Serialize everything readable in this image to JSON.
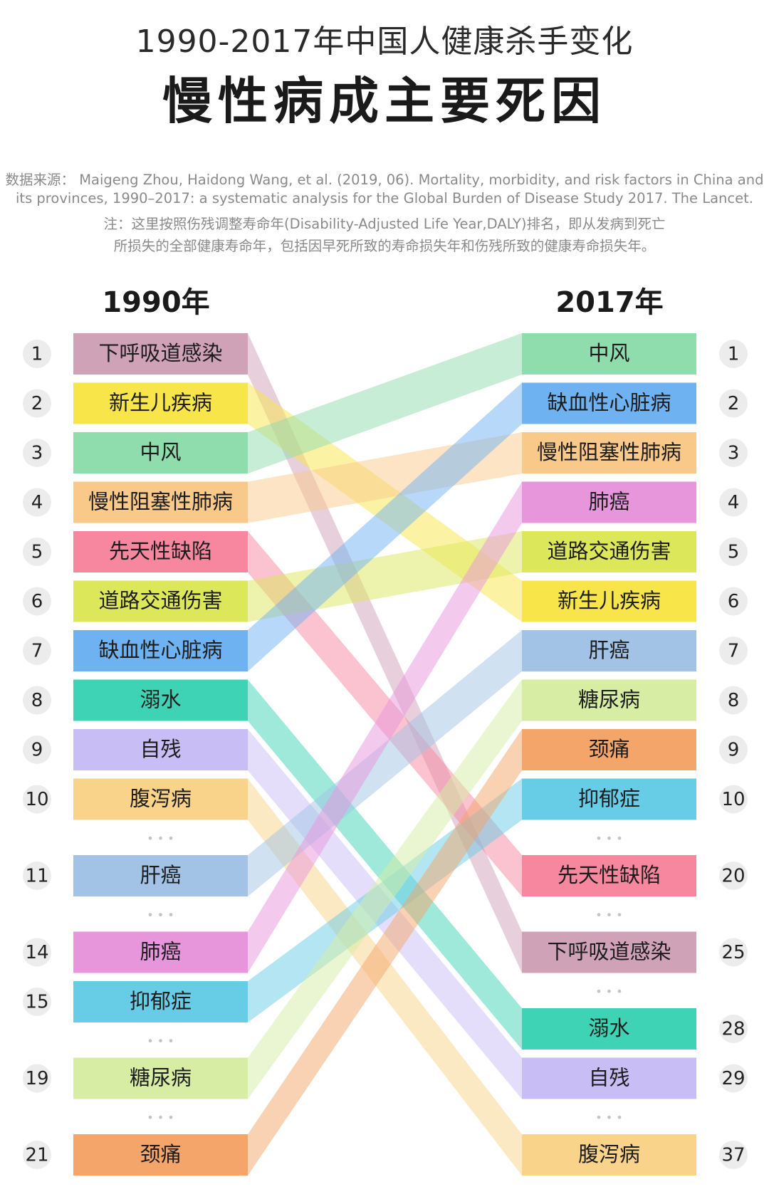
{
  "header": {
    "title_line1": "1990-2017年中国人健康杀手变化",
    "title_line2": "慢性病成主要死因",
    "source_lines": [
      "数据来源： Maigeng Zhou, Haidong Wang, et al. (2019, 06). Mortality, morbidity, and risk factors in China and",
      "its provinces, 1990–2017: a systematic analysis for the Global Burden of Disease Study 2017. The Lancet.",
      "注：这里按照伤残调整寿命年(Disability-Adjusted Life Year,DALY)排名，即从发病到死亡",
      "所损失的全部健康寿命年，包括因早死所致的寿命损失年和伤残所致的健康寿命损失年。"
    ]
  },
  "chart_data": {
    "type": "table",
    "left_header": "1990年",
    "right_header": "2017年",
    "ellipsis": "• • •",
    "left_items": [
      {
        "rank": "1",
        "label": "下呼吸道感染",
        "color": "#cfa2b8",
        "gap_before": false
      },
      {
        "rank": "2",
        "label": "新生儿疾病",
        "color": "#f7e54a",
        "gap_before": false
      },
      {
        "rank": "3",
        "label": "中风",
        "color": "#8fdcad",
        "gap_before": false
      },
      {
        "rank": "4",
        "label": "慢性阻塞性肺病",
        "color": "#f9c98a",
        "gap_before": false
      },
      {
        "rank": "5",
        "label": "先天性缺陷",
        "color": "#f7869f",
        "gap_before": false
      },
      {
        "rank": "6",
        "label": "道路交通伤害",
        "color": "#dce75a",
        "gap_before": false
      },
      {
        "rank": "7",
        "label": "缺血性心脏病",
        "color": "#6fb2f2",
        "gap_before": false
      },
      {
        "rank": "8",
        "label": "溺水",
        "color": "#3fd3b5",
        "gap_before": false
      },
      {
        "rank": "9",
        "label": "自残",
        "color": "#c9bdf5",
        "gap_before": false
      },
      {
        "rank": "10",
        "label": "腹泻病",
        "color": "#f8d389",
        "gap_before": false
      },
      {
        "rank": "11",
        "label": "肝癌",
        "color": "#a2c3e6",
        "gap_before": true
      },
      {
        "rank": "14",
        "label": "肺癌",
        "color": "#e796dc",
        "gap_before": true
      },
      {
        "rank": "15",
        "label": "抑郁症",
        "color": "#67cce6",
        "gap_before": false
      },
      {
        "rank": "19",
        "label": "糖尿病",
        "color": "#d6eda3",
        "gap_before": true
      },
      {
        "rank": "21",
        "label": "颈痛",
        "color": "#f4a66a",
        "gap_before": true
      }
    ],
    "right_items": [
      {
        "rank": "1",
        "label": "中风",
        "color": "#8fdcad",
        "gap_before": false
      },
      {
        "rank": "2",
        "label": "缺血性心脏病",
        "color": "#6fb2f2",
        "gap_before": false
      },
      {
        "rank": "3",
        "label": "慢性阻塞性肺病",
        "color": "#f9c98a",
        "gap_before": false
      },
      {
        "rank": "4",
        "label": "肺癌",
        "color": "#e796dc",
        "gap_before": false
      },
      {
        "rank": "5",
        "label": "道路交通伤害",
        "color": "#dce75a",
        "gap_before": false
      },
      {
        "rank": "6",
        "label": "新生儿疾病",
        "color": "#f7e54a",
        "gap_before": false
      },
      {
        "rank": "7",
        "label": "肝癌",
        "color": "#a2c3e6",
        "gap_before": false
      },
      {
        "rank": "8",
        "label": "糖尿病",
        "color": "#d6eda3",
        "gap_before": false
      },
      {
        "rank": "9",
        "label": "颈痛",
        "color": "#f4a66a",
        "gap_before": false
      },
      {
        "rank": "10",
        "label": "抑郁症",
        "color": "#67cce6",
        "gap_before": false
      },
      {
        "rank": "20",
        "label": "先天性缺陷",
        "color": "#f7869f",
        "gap_before": true
      },
      {
        "rank": "25",
        "label": "下呼吸道感染",
        "color": "#cfa2b8",
        "gap_before": true
      },
      {
        "rank": "28",
        "label": "溺水",
        "color": "#3fd3b5",
        "gap_before": true
      },
      {
        "rank": "29",
        "label": "自残",
        "color": "#c9bdf5",
        "gap_before": false
      },
      {
        "rank": "37",
        "label": "腹泻病",
        "color": "#f8d389",
        "gap_before": true
      }
    ]
  }
}
